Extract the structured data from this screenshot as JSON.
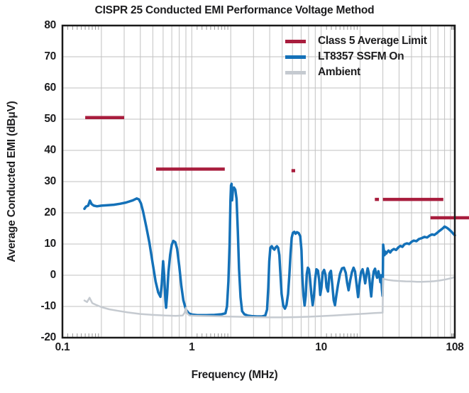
{
  "title": "CISPR 25 Conducted EMI Performance Voltage Method",
  "axes": {
    "x_label": "Frequency (MHz)",
    "y_label": "Average Conducted EMI (dBμV)"
  },
  "legend": {
    "position": "top-right",
    "items": [
      {
        "label": "Class 5 Average Limit",
        "color": "#A81D3D"
      },
      {
        "label": "LT8357 SSFM On",
        "color": "#1471B8"
      },
      {
        "label": "Ambient",
        "color": "#C5CAD0"
      }
    ]
  },
  "colors": {
    "limit_red": "#A81D3D",
    "trace_blue": "#1471B8",
    "trace_gray": "#C5CAD0",
    "grid": "#C2C2C2",
    "tick": "#9A9A9A",
    "border": "#1A1A1A",
    "text": "#1D1D1F"
  },
  "chart_data": {
    "type": "line",
    "title": "CISPR 25 Conducted EMI Performance Voltage Method",
    "xlabel": "Frequency (MHz)",
    "ylabel": "Average Conducted EMI (dBμV)",
    "x_scale": "log",
    "xlim": [
      0.1,
      108
    ],
    "ylim": [
      -20,
      80
    ],
    "grid": "major+minor",
    "legend_position": "top-right",
    "x_ticks": [
      {
        "value": 0.1,
        "label": "0.1"
      },
      {
        "value": 1,
        "label": "1"
      },
      {
        "value": 10,
        "label": "10"
      },
      {
        "value": 108,
        "label": "108"
      }
    ],
    "y_ticks": [
      {
        "value": 80,
        "label": "80"
      },
      {
        "value": 70,
        "label": "70"
      },
      {
        "value": 60,
        "label": "60"
      },
      {
        "value": 50,
        "label": "50"
      },
      {
        "value": 40,
        "label": "40"
      },
      {
        "value": 30,
        "label": "30"
      },
      {
        "value": 20,
        "label": "20"
      },
      {
        "value": 10,
        "label": "10"
      },
      {
        "value": 0,
        "label": "0"
      },
      {
        "value": -10,
        "label": "-10"
      },
      {
        "value": -20,
        "label": "-20"
      }
    ],
    "minor_tick_extra": [
      102,
      104,
      106
    ],
    "series": [
      {
        "name": "Class 5 Average Limit",
        "color": "#A81D3D",
        "style": "segments",
        "width": 4.5,
        "segments": [
          {
            "f1": 0.15,
            "f2": 0.3,
            "dB": 50.5
          },
          {
            "f1": 0.53,
            "f2": 1.8,
            "dB": 34.0
          },
          {
            "f1": 5.9,
            "f2": 6.3,
            "dB": 33.5
          },
          {
            "f1": 26.0,
            "f2": 28.0,
            "dB": 24.3
          },
          {
            "f1": 30.0,
            "f2": 88.0,
            "dB": 24.3
          },
          {
            "f1": 70.0,
            "f2": 108.0,
            "dB": 18.4,
            "extends_past_axis": true
          }
        ]
      },
      {
        "name": "LT8357 SSFM On",
        "color": "#1471B8",
        "style": "line",
        "width": 3.5,
        "points": [
          [
            0.148,
            21.3
          ],
          [
            0.152,
            22.0
          ],
          [
            0.158,
            22.3
          ],
          [
            0.163,
            23.9
          ],
          [
            0.168,
            22.8
          ],
          [
            0.175,
            22.3
          ],
          [
            0.185,
            22.1
          ],
          [
            0.2,
            22.3
          ],
          [
            0.22,
            22.4
          ],
          [
            0.25,
            22.6
          ],
          [
            0.28,
            22.9
          ],
          [
            0.31,
            23.3
          ],
          [
            0.35,
            24.0
          ],
          [
            0.375,
            24.6
          ],
          [
            0.39,
            24.3
          ],
          [
            0.405,
            23.0
          ],
          [
            0.42,
            20.5
          ],
          [
            0.445,
            15.5
          ],
          [
            0.47,
            10.5
          ],
          [
            0.5,
            3.5
          ],
          [
            0.525,
            -2.0
          ],
          [
            0.55,
            -5.5
          ],
          [
            0.572,
            -6.9
          ],
          [
            0.585,
            -3.0
          ],
          [
            0.6,
            4.5
          ],
          [
            0.612,
            0.0
          ],
          [
            0.625,
            -8.0
          ],
          [
            0.633,
            -10.4
          ],
          [
            0.645,
            -6.0
          ],
          [
            0.66,
            1.0
          ],
          [
            0.68,
            6.5
          ],
          [
            0.7,
            9.8
          ],
          [
            0.72,
            11.0
          ],
          [
            0.745,
            10.6
          ],
          [
            0.77,
            8.5
          ],
          [
            0.8,
            3.0
          ],
          [
            0.83,
            -3.5
          ],
          [
            0.86,
            -8.0
          ],
          [
            0.9,
            -11.0
          ],
          [
            0.95,
            -12.2
          ],
          [
            1.0,
            -12.6
          ],
          [
            1.1,
            -12.8
          ],
          [
            1.3,
            -12.8
          ],
          [
            1.5,
            -12.7
          ],
          [
            1.7,
            -12.5
          ],
          [
            1.82,
            -12.2
          ],
          [
            1.87,
            -10.0
          ],
          [
            1.92,
            -2.0
          ],
          [
            1.96,
            10.0
          ],
          [
            1.99,
            24.0
          ],
          [
            2.01,
            28.8
          ],
          [
            2.03,
            29.3
          ],
          [
            2.05,
            24.0
          ],
          [
            2.08,
            27.6
          ],
          [
            2.12,
            28.1
          ],
          [
            2.17,
            27.4
          ],
          [
            2.22,
            24.5
          ],
          [
            2.27,
            14.0
          ],
          [
            2.32,
            2.0
          ],
          [
            2.38,
            -7.0
          ],
          [
            2.45,
            -11.5
          ],
          [
            2.55,
            -12.5
          ],
          [
            2.7,
            -12.9
          ],
          [
            2.9,
            -13.1
          ],
          [
            3.2,
            -13.2
          ],
          [
            3.5,
            -13.2
          ],
          [
            3.7,
            -12.9
          ],
          [
            3.82,
            -11.0
          ],
          [
            3.9,
            -4.0
          ],
          [
            3.97,
            4.5
          ],
          [
            4.05,
            8.8
          ],
          [
            4.15,
            9.3
          ],
          [
            4.25,
            8.6
          ],
          [
            4.35,
            8.2
          ],
          [
            4.45,
            8.9
          ],
          [
            4.55,
            9.3
          ],
          [
            4.65,
            8.8
          ],
          [
            4.75,
            6.5
          ],
          [
            4.85,
            0.0
          ],
          [
            4.95,
            -6.0
          ],
          [
            5.1,
            -9.8
          ],
          [
            5.25,
            -10.7
          ],
          [
            5.4,
            -9.5
          ],
          [
            5.55,
            -6.0
          ],
          [
            5.68,
            0.0
          ],
          [
            5.8,
            7.0
          ],
          [
            5.92,
            12.0
          ],
          [
            6.05,
            13.6
          ],
          [
            6.2,
            13.9
          ],
          [
            6.35,
            13.3
          ],
          [
            6.5,
            13.8
          ],
          [
            6.7,
            13.5
          ],
          [
            6.9,
            12.5
          ],
          [
            7.05,
            8.0
          ],
          [
            7.15,
            0.0
          ],
          [
            7.3,
            -6.5
          ],
          [
            7.45,
            -9.7
          ],
          [
            7.6,
            -6.5
          ],
          [
            7.75,
            0.5
          ],
          [
            7.9,
            2.4
          ],
          [
            8.05,
            1.9
          ],
          [
            8.2,
            -1.0
          ],
          [
            8.4,
            -6.0
          ],
          [
            8.6,
            -9.6
          ],
          [
            8.8,
            -6.5
          ],
          [
            9.0,
            -1.0
          ],
          [
            9.2,
            1.9
          ],
          [
            9.45,
            1.5
          ],
          [
            9.65,
            -1.5
          ],
          [
            9.85,
            -6.3
          ],
          [
            10.05,
            -4.0
          ],
          [
            10.3,
            0.9
          ],
          [
            10.55,
            1.7
          ],
          [
            10.8,
            0.2
          ],
          [
            11.0,
            -3.8
          ],
          [
            11.3,
            -5.2
          ],
          [
            11.6,
            0.6
          ],
          [
            11.9,
            1.4
          ],
          [
            12.2,
            -3.0
          ],
          [
            12.5,
            -8.0
          ],
          [
            12.8,
            -9.6
          ],
          [
            13.1,
            -6.5
          ],
          [
            13.5,
            -3.0
          ],
          [
            14.0,
            0.5
          ],
          [
            14.5,
            2.2
          ],
          [
            15.0,
            2.4
          ],
          [
            15.5,
            0.8
          ],
          [
            15.9,
            -2.5
          ],
          [
            16.3,
            -4.8
          ],
          [
            16.8,
            -1.5
          ],
          [
            17.3,
            1.0
          ],
          [
            17.8,
            2.4
          ],
          [
            18.3,
            1.2
          ],
          [
            18.8,
            -3.0
          ],
          [
            19.3,
            -7.0
          ],
          [
            19.8,
            -2.5
          ],
          [
            20.3,
            0.8
          ],
          [
            20.9,
            1.9
          ],
          [
            21.4,
            0.0
          ],
          [
            21.9,
            -2.6
          ],
          [
            22.4,
            0.3
          ],
          [
            22.9,
            2.2
          ],
          [
            23.4,
            0.6
          ],
          [
            23.9,
            -3.5
          ],
          [
            24.4,
            -6.8
          ],
          [
            25.0,
            -1.5
          ],
          [
            25.5,
            1.2
          ],
          [
            26.1,
            2.1
          ],
          [
            26.6,
            0.2
          ],
          [
            27.1,
            -0.8
          ],
          [
            27.7,
            1.3
          ],
          [
            28.2,
            -0.2
          ],
          [
            28.7,
            -2.2
          ],
          [
            29.1,
            0.0
          ],
          [
            29.5,
            -4.5
          ],
          [
            29.8,
            -6.6
          ],
          [
            30.0,
            0.0
          ],
          [
            30.15,
            9.8
          ],
          [
            30.5,
            8.2
          ],
          [
            30.9,
            6.4
          ],
          [
            31.3,
            7.6
          ],
          [
            31.8,
            6.9
          ],
          [
            32.4,
            7.4
          ],
          [
            33.2,
            7.9
          ],
          [
            34.2,
            7.3
          ],
          [
            35.2,
            8.0
          ],
          [
            36.5,
            8.4
          ],
          [
            38,
            8.1
          ],
          [
            39.5,
            8.9
          ],
          [
            41,
            9.4
          ],
          [
            42.5,
            9.1
          ],
          [
            44,
            9.9
          ],
          [
            46,
            10.2
          ],
          [
            48,
            10.0
          ],
          [
            50,
            10.7
          ],
          [
            52,
            11.1
          ],
          [
            54.5,
            10.9
          ],
          [
            57,
            11.6
          ],
          [
            60,
            11.9
          ],
          [
            63,
            12.3
          ],
          [
            66,
            12.1
          ],
          [
            69,
            12.7
          ],
          [
            72,
            13.1
          ],
          [
            75,
            12.9
          ],
          [
            78,
            13.4
          ],
          [
            81,
            14.0
          ],
          [
            84,
            14.5
          ],
          [
            87,
            15.0
          ],
          [
            90,
            15.6
          ],
          [
            93,
            15.3
          ],
          [
            96,
            14.9
          ],
          [
            99,
            14.4
          ],
          [
            102,
            13.9
          ],
          [
            105,
            13.3
          ],
          [
            108,
            12.8
          ]
        ]
      },
      {
        "name": "Ambient",
        "color": "#C5CAD0",
        "style": "line",
        "width": 2.5,
        "points": [
          [
            0.148,
            -8.1
          ],
          [
            0.155,
            -8.6
          ],
          [
            0.162,
            -7.2
          ],
          [
            0.17,
            -8.9
          ],
          [
            0.18,
            -9.4
          ],
          [
            0.2,
            -10.2
          ],
          [
            0.23,
            -10.9
          ],
          [
            0.27,
            -11.4
          ],
          [
            0.32,
            -11.9
          ],
          [
            0.4,
            -12.4
          ],
          [
            0.5,
            -12.7
          ],
          [
            0.62,
            -12.9
          ],
          [
            0.75,
            -13.0
          ],
          [
            0.85,
            -12.9
          ],
          [
            0.88,
            -12.0
          ],
          [
            0.9,
            -10.4
          ],
          [
            0.92,
            -12.2
          ],
          [
            0.96,
            -12.9
          ],
          [
            1.1,
            -13.0
          ],
          [
            1.4,
            -13.1
          ],
          [
            1.8,
            -13.2
          ],
          [
            2.3,
            -13.3
          ],
          [
            3,
            -13.4
          ],
          [
            4,
            -13.5
          ],
          [
            5,
            -13.5
          ],
          [
            6.5,
            -13.4
          ],
          [
            8,
            -13.3
          ],
          [
            10,
            -13.1
          ],
          [
            12.5,
            -12.9
          ],
          [
            15,
            -12.7
          ],
          [
            18,
            -12.5
          ],
          [
            22,
            -12.3
          ],
          [
            26,
            -12.1
          ],
          [
            29.9,
            -12.0
          ],
          [
            30.1,
            -1.1
          ],
          [
            31,
            -1.3
          ],
          [
            33,
            -1.5
          ],
          [
            36,
            -1.7
          ],
          [
            40,
            -1.85
          ],
          [
            45,
            -1.95
          ],
          [
            50,
            -2.0
          ],
          [
            55,
            -2.1
          ],
          [
            60,
            -2.1
          ],
          [
            65,
            -2.05
          ],
          [
            70,
            -2.0
          ],
          [
            75,
            -1.9
          ],
          [
            80,
            -1.75
          ],
          [
            85,
            -1.6
          ],
          [
            90,
            -1.4
          ],
          [
            95,
            -1.2
          ],
          [
            100,
            -1.0
          ],
          [
            104,
            -0.8
          ],
          [
            108,
            -0.55
          ]
        ]
      }
    ]
  }
}
